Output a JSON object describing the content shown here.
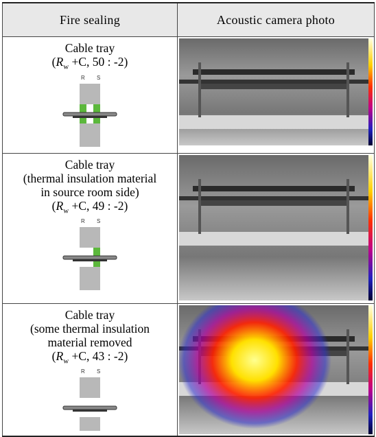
{
  "table": {
    "header": [
      "Fire sealing",
      "Acoustic camera photo"
    ],
    "rows": [
      {
        "lines": [
          "Cable tray"
        ],
        "rating": [
          "(",
          "R",
          "w",
          " +C, 50 : -2)"
        ],
        "diagram_labels": [
          "R",
          "S"
        ]
      },
      {
        "lines": [
          "Cable tray",
          "(thermal insulation material",
          "in source room side)"
        ],
        "rating": [
          "(",
          "R",
          "w",
          " +C, 49 : -2)"
        ],
        "diagram_labels": [
          "R",
          "S"
        ]
      },
      {
        "lines": [
          "Cable tray",
          "(some thermal insulation",
          "material removed"
        ],
        "rating": [
          "(",
          "R",
          "w",
          " +C, 43 : -2)"
        ],
        "diagram_labels": [
          "R",
          "S"
        ]
      }
    ]
  }
}
